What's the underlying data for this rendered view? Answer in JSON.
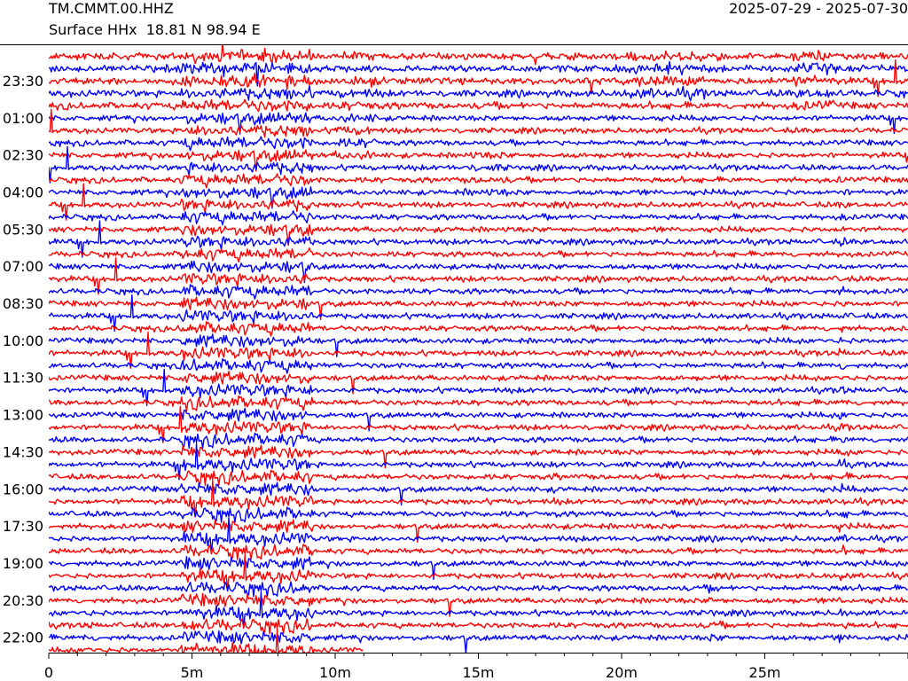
{
  "header": {
    "station": "TM.CMMT.00.HHZ",
    "location": "Surface HHx  18.81 N 98.94 E",
    "date_range": "2025-07-29 - 2025-07-30"
  },
  "chart_data": {
    "type": "helicorder",
    "title": "TM.CMMT.00.HHZ",
    "subtitle": "Surface HHx  18.81 N 98.94 E",
    "date_range": "2025-07-29 - 2025-07-30",
    "xlim_minutes": [
      0,
      30
    ],
    "x_ticks": [
      {
        "value": 0,
        "label": "0"
      },
      {
        "value": 5,
        "label": "5m"
      },
      {
        "value": 10,
        "label": "10m"
      },
      {
        "value": 15,
        "label": "15m"
      },
      {
        "value": 20,
        "label": "20m"
      },
      {
        "value": 25,
        "label": "25m"
      }
    ],
    "y_tick_labels": [
      "23:30",
      "01:00",
      "02:30",
      "04:00",
      "05:30",
      "07:00",
      "08:30",
      "10:00",
      "11:30",
      "13:00",
      "14:30",
      "16:00",
      "17:30",
      "19:00",
      "20:30",
      "22:00"
    ],
    "trace_count": 49,
    "last_trace_end_minute": 11,
    "trace_colors": [
      "#ff0000",
      "#0000ff"
    ],
    "events": [
      {
        "start_minute": 4.6,
        "end_minute": 9.2,
        "first_line": 0,
        "last_line": 48,
        "amp": 3.0,
        "color": "red",
        "kind": "sustained"
      },
      {
        "start_minute": 0,
        "end_minute": 30,
        "first_line": 0,
        "last_line": 4,
        "amp": 1.6,
        "color": "mixed",
        "kind": "sustained"
      },
      {
        "start_minute": 20,
        "end_minute": 23,
        "first_line": 0,
        "last_line": 3,
        "amp": 2.5,
        "color": "blue",
        "kind": "sustained"
      },
      {
        "start_minute": 26,
        "end_minute": 27.5,
        "first_line": 0,
        "last_line": 4,
        "amp": 2.5,
        "color": "blue",
        "kind": "sustained"
      },
      {
        "start_minute": 10,
        "end_minute": 11.5,
        "first_line": 2,
        "last_line": 8,
        "amp": 2.2,
        "color": "red",
        "kind": "sustained"
      },
      {
        "start_minute": 14.5,
        "end_minute": 16,
        "first_line": 8,
        "last_line": 11,
        "amp": 1.8,
        "color": "red",
        "kind": "sustained"
      },
      {
        "start_minute": 27.6,
        "end_minute": 28.3,
        "first_line": 10,
        "last_line": 48,
        "amp": 2.5,
        "color": "red",
        "kind": "burst"
      },
      {
        "start_minute": 17.6,
        "end_minute": 18.2,
        "first_line": 32,
        "last_line": 38,
        "amp": 2.2,
        "color": "blue",
        "kind": "burst"
      },
      {
        "start_minute": 23,
        "end_minute": 24.5,
        "first_line": 43,
        "last_line": 47,
        "amp": 2.2,
        "color": "blue",
        "kind": "burst"
      },
      {
        "start_minute": 1.2,
        "end_minute": 2.6,
        "first_line": 45,
        "last_line": 48,
        "amp": 2.0,
        "color": "blue",
        "kind": "burst"
      },
      {
        "start_minute": 28,
        "end_minute": 30,
        "first_line": 34,
        "last_line": 38,
        "amp": 1.6,
        "color": "red",
        "kind": "burst"
      }
    ]
  }
}
